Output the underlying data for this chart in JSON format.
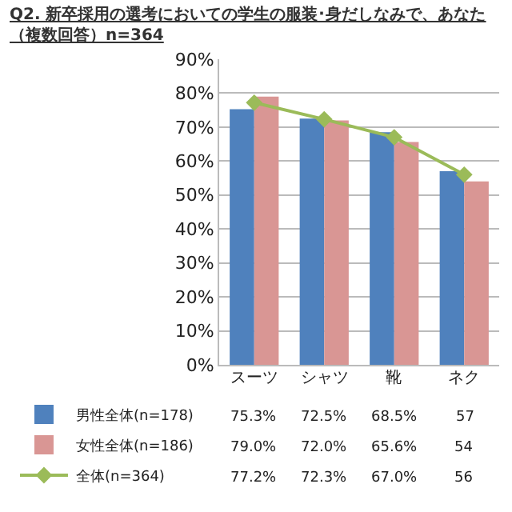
{
  "chart_data": {
    "type": "bar",
    "title": "Q2. 新卒採用の選考においての学生の服装･身だしなみで、あなた",
    "subtitle": "（複数回答）n=364",
    "categories": [
      "スーツ",
      "シャツ",
      "靴",
      "ネク"
    ],
    "series": [
      {
        "name": "男性全体(n=178)",
        "color": "#4f81bd",
        "values": [
          75.3,
          72.5,
          68.5,
          57
        ],
        "value_labels": [
          "75.3%",
          "72.5%",
          "68.5%",
          "57"
        ]
      },
      {
        "name": "女性全体(n=186)",
        "color": "#d99694",
        "values": [
          79.0,
          72.0,
          65.6,
          54
        ],
        "value_labels": [
          "79.0%",
          "72.0%",
          "65.6%",
          "54"
        ]
      },
      {
        "name": "全体(n=364)",
        "type": "line",
        "color": "#9bbb59",
        "marker": "diamond",
        "values": [
          77.2,
          72.3,
          67.0,
          56
        ],
        "value_labels": [
          "77.2%",
          "72.3%",
          "67.0%",
          "56"
        ]
      }
    ],
    "ylim": [
      0,
      90
    ],
    "yticks": [
      {
        "value": 0,
        "label": "0%"
      },
      {
        "value": 10,
        "label": "10%"
      },
      {
        "value": 20,
        "label": "20%"
      },
      {
        "value": 30,
        "label": "30%"
      },
      {
        "value": 40,
        "label": "40%"
      },
      {
        "value": 50,
        "label": "50%"
      },
      {
        "value": 60,
        "label": "60%"
      },
      {
        "value": 70,
        "label": "70%"
      },
      {
        "value": 80,
        "label": "80%"
      },
      {
        "value": 90,
        "label": "90%"
      }
    ],
    "grid": "y",
    "legend": "bottom left"
  }
}
